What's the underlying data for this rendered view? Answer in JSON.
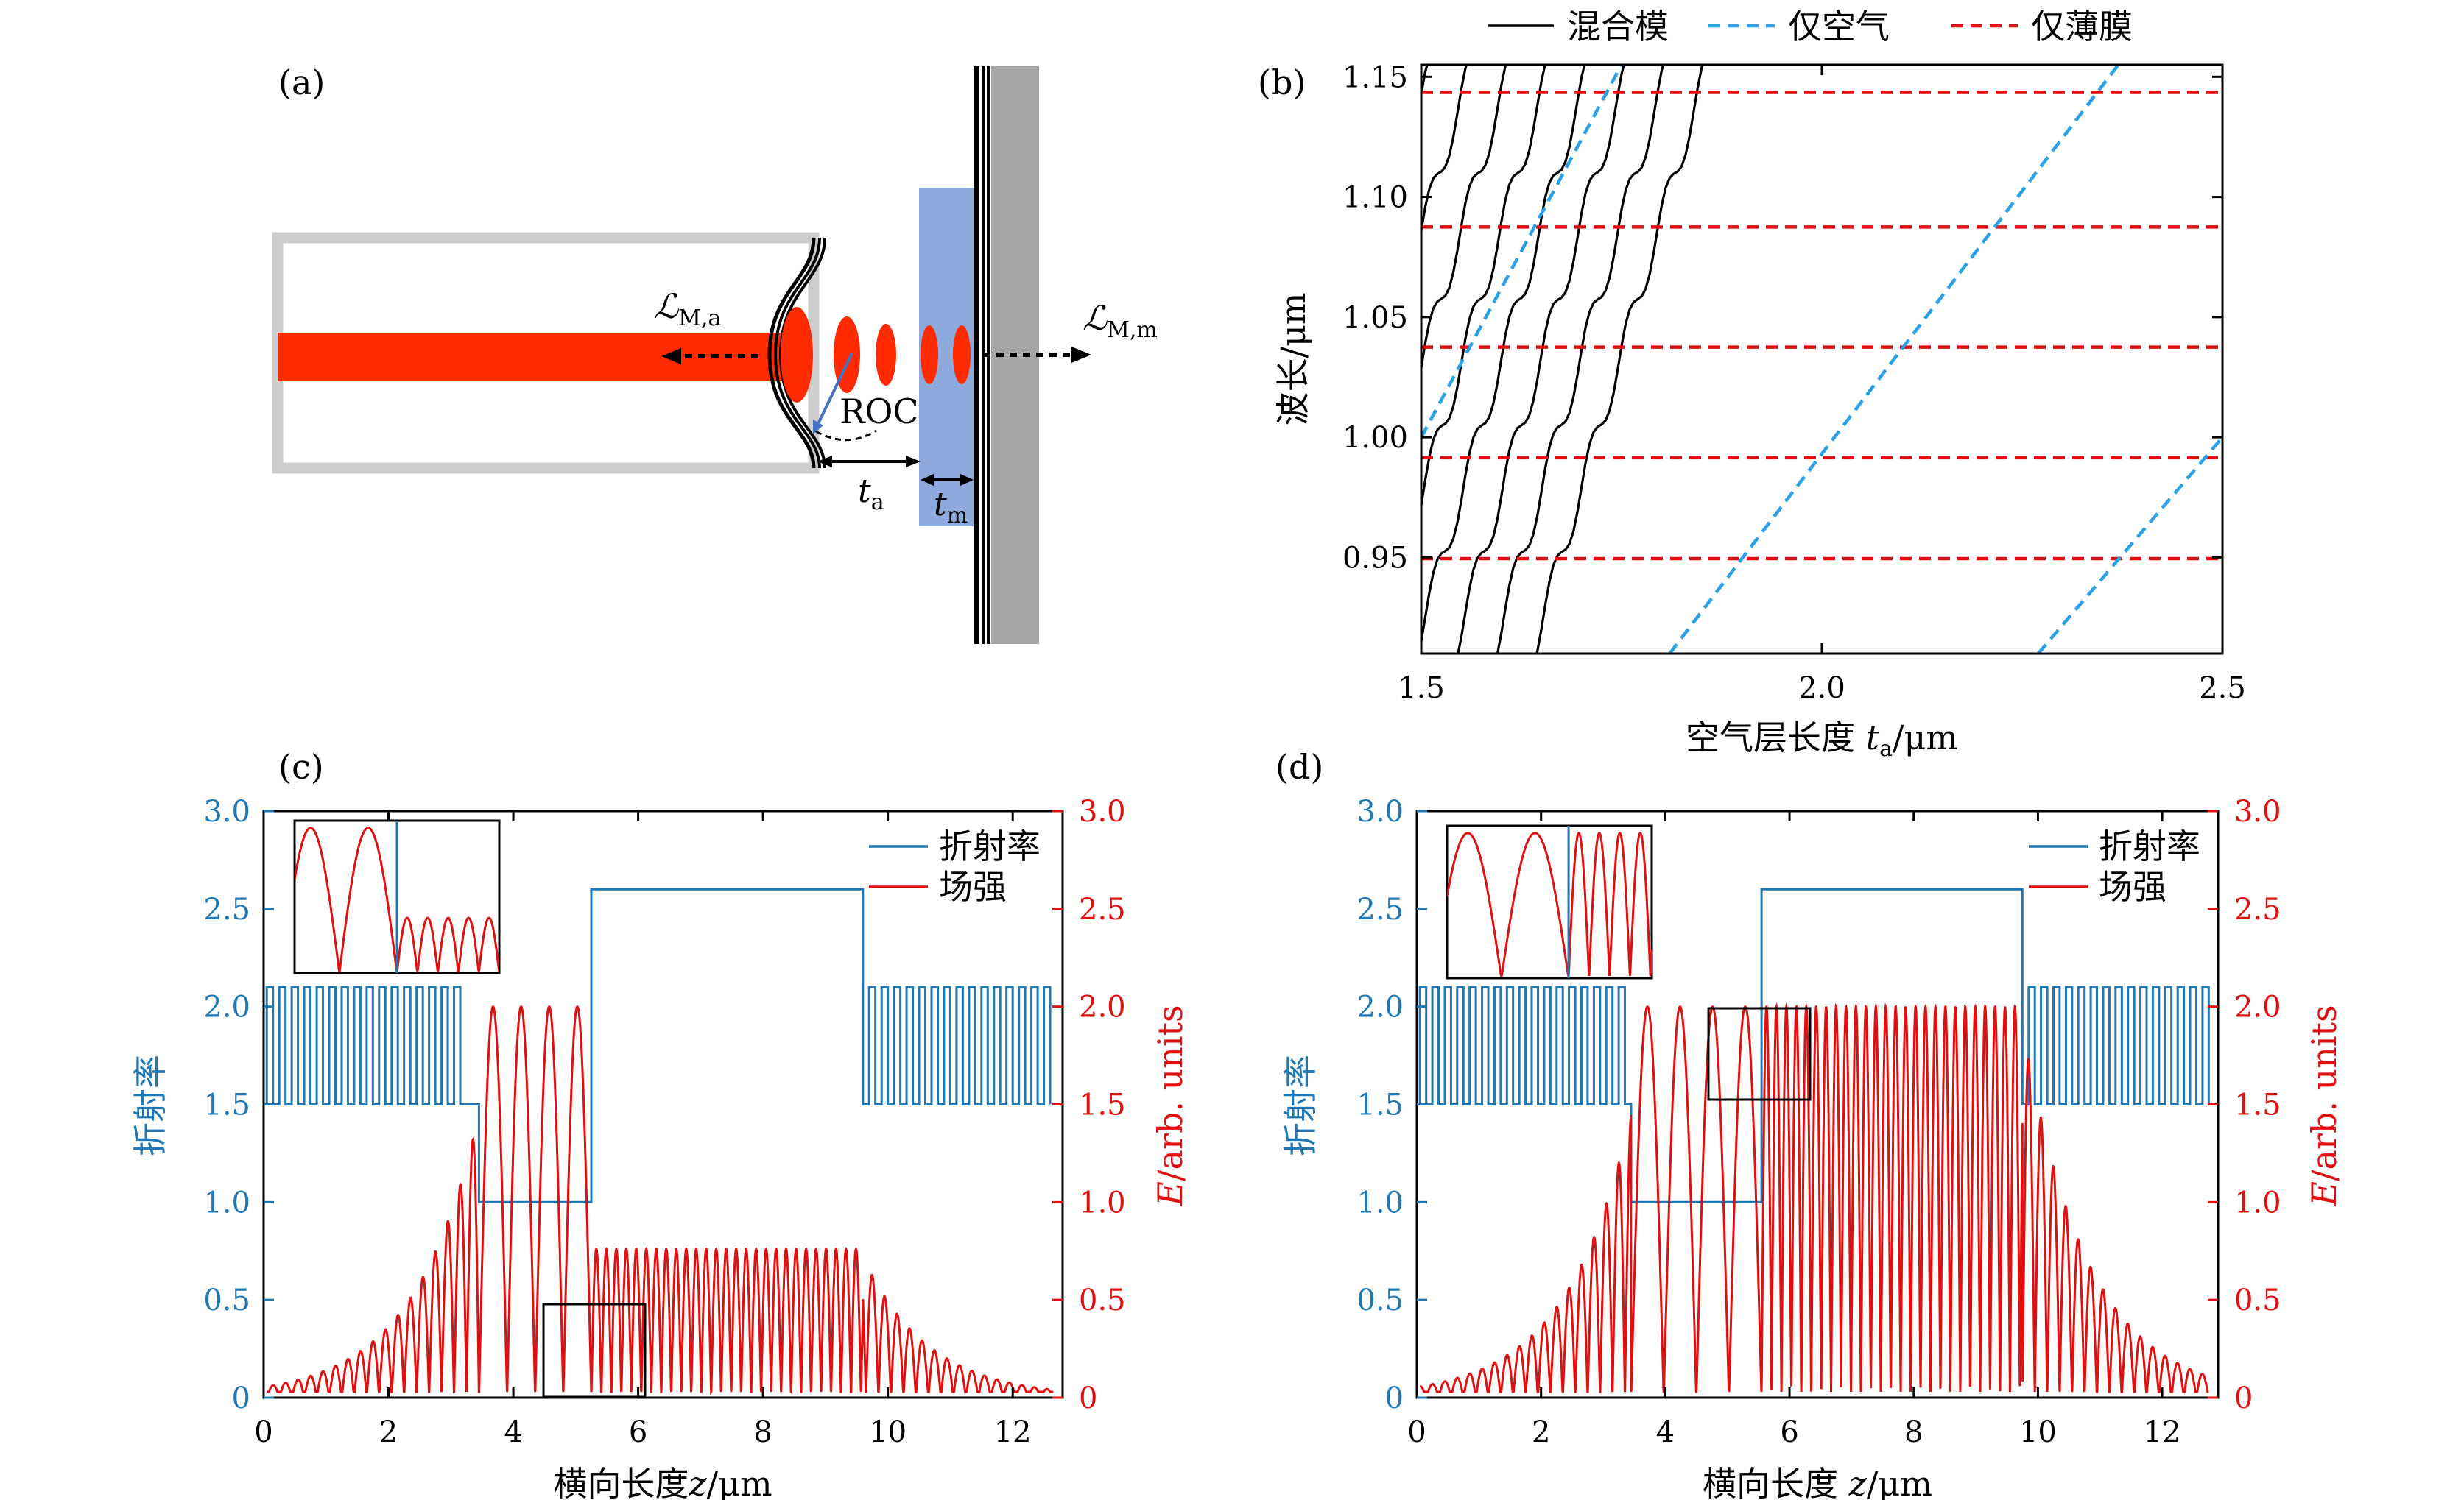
{
  "colors": {
    "blue": "#1f77b4",
    "red": "#e01010",
    "dash_blue": "#2aa0e8",
    "dash_red": "#e01010",
    "gray": "#a6a6a6",
    "light_gray": "#cccccc",
    "film": "#8ea9db",
    "laser": "#ff2a00"
  },
  "panel_a": {
    "label": "(a)",
    "annotations": {
      "la": "ℒ",
      "la_sub": "M,a",
      "lm": "ℒ",
      "lm_sub": "M,m",
      "roc": "ROC",
      "ta": "t",
      "ta_sub": "a",
      "tm": "t",
      "tm_sub": "m"
    }
  },
  "chart_data": [
    {
      "id": "b",
      "type": "line",
      "label": "(b)",
      "xlabel": "空气层长度 t_a/μm",
      "xlabel_parts": {
        "pre": "空气层长度 ",
        "var": "t",
        "sub": "a",
        "post": "/μm"
      },
      "ylabel": "波长/μm",
      "xlim": [
        1.5,
        2.5
      ],
      "ylim": [
        0.91,
        1.155
      ],
      "xticks": [
        "1.5",
        "2.0",
        "2.5"
      ],
      "yticks": [
        "0.95",
        "1.00",
        "1.05",
        "1.10",
        "1.15"
      ],
      "legend": [
        "混合模",
        "仅空气",
        "仅薄膜"
      ],
      "series": [
        {
          "name": "仅薄膜",
          "style": "dashed",
          "values": [
            0.9495,
            0.9915,
            1.0375,
            1.0875,
            1.1435
          ]
        },
        {
          "name": "仅空气",
          "style": "dashed",
          "lines": [
            [
              1.5,
              1.0,
              1.75,
              1.155
            ],
            [
              1.81,
              0.91,
              2.37,
              1.155
            ],
            [
              2.27,
              0.91,
              2.5,
              1.0
            ]
          ]
        },
        {
          "name": "混合模",
          "style": "solid",
          "description": "avoided-crossing branches between air and film modes"
        }
      ]
    },
    {
      "id": "c",
      "type": "line",
      "label": "(c)",
      "xlabel": "横向长度z/μm",
      "xlabel_parts": {
        "pre": "横向长度",
        "var": "z",
        "post": "/μm"
      },
      "ylabel_left": "折射率",
      "ylabel_right": "E/arb. units",
      "ylabel_right_parts": {
        "var": "E",
        "post": "/arb. units"
      },
      "xlim": [
        0,
        12.8
      ],
      "ylim": [
        0,
        3.0
      ],
      "xticks": [
        "0",
        "2",
        "4",
        "6",
        "8",
        "10",
        "12"
      ],
      "yticks": [
        "0",
        "0.5",
        "1.0",
        "1.5",
        "2.0",
        "2.5",
        "3.0"
      ],
      "legend": [
        "折射率",
        "场强"
      ],
      "structure": {
        "dbr_left_end": 3.35,
        "air_gap": [
          3.45,
          5.25
        ],
        "film": [
          5.25,
          9.6
        ],
        "dbr_right_start": 9.6,
        "n_high": 2.1,
        "n_low": 1.5,
        "n_air": 1.0,
        "n_film": 2.6
      },
      "field": {
        "air_peak": 2.0,
        "film_peak": 0.76,
        "peak_z": 5.25
      }
    },
    {
      "id": "d",
      "type": "line",
      "label": "(d)",
      "xlabel": "横向长度 z/μm",
      "xlabel_parts": {
        "pre": "横向长度 ",
        "var": "z",
        "post": "/μm"
      },
      "ylabel_left": "折射率",
      "ylabel_right": "E/arb. units",
      "ylabel_right_parts": {
        "var": "E",
        "post": "/arb. units"
      },
      "xlim": [
        0,
        12.9
      ],
      "ylim": [
        0,
        3.0
      ],
      "xticks": [
        "0",
        "2",
        "4",
        "6",
        "8",
        "10",
        "12"
      ],
      "yticks": [
        "0",
        "0.5",
        "1.0",
        "1.5",
        "2.0",
        "2.5",
        "3.0"
      ],
      "legend": [
        "折射率",
        "场强"
      ],
      "structure": {
        "dbr_left_end": 3.45,
        "air_gap": [
          3.45,
          5.55
        ],
        "film": [
          5.55,
          9.75
        ],
        "dbr_right_start": 9.75,
        "n_high": 2.1,
        "n_low": 1.5,
        "n_air": 1.0,
        "n_film": 2.6
      },
      "field": {
        "air_peak": 2.0,
        "film_peak": 2.0,
        "peak_z": 5.5
      }
    }
  ]
}
